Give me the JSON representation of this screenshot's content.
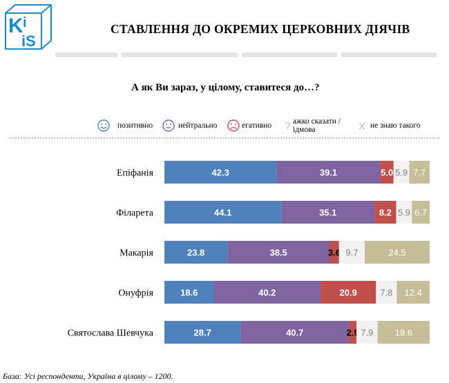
{
  "logo": {
    "text": "KIIS",
    "color": "#1b8bc9"
  },
  "header": {
    "title": "СТАВЛЕННЯ ДО ОКРЕМИХ ЦЕРКОВНИХ ДІЯЧІВ"
  },
  "question": "А як Ви зараз, у цілому, ставитеся до…?",
  "legend": [
    {
      "label": "позитивно",
      "icon": "smile-face-icon",
      "color": "#4f81bd"
    },
    {
      "label": "нейтрально",
      "icon": "neutral-face-icon",
      "color": "#8064a2"
    },
    {
      "label": "егативно",
      "icon": "sad-face-icon",
      "color": "#c0504d"
    },
    {
      "label": "ажко сказати / ідмова",
      "icon": "question-mark-icon",
      "color": "#f2f2f2"
    },
    {
      "label": "не знаю такого",
      "icon": "x-mark-icon",
      "color": "#c6bd99"
    }
  ],
  "chart_data": {
    "type": "bar",
    "orientation": "horizontal",
    "stacked": true,
    "categories": [
      "Епіфанія",
      "Філарета",
      "Макарія",
      "Онуфрія",
      "Святослава Шевчука"
    ],
    "series": [
      {
        "name": "позитивно",
        "color": "#4f81bd",
        "label_color": "#ffffff",
        "bold": true,
        "values": [
          42.3,
          44.1,
          23.8,
          18.6,
          28.7
        ]
      },
      {
        "name": "нейтрально",
        "color": "#8064a2",
        "label_color": "#ffffff",
        "bold": true,
        "values": [
          39.1,
          35.1,
          38.5,
          40.2,
          40.7
        ]
      },
      {
        "name": "егативно",
        "color": "#c0504d",
        "label_color": "#ffffff",
        "bold": true,
        "values": [
          5.0,
          8.2,
          3.6,
          20.9,
          2.9
        ]
      },
      {
        "name": "ажко сказати / ідмова",
        "color": "#f2f2f2",
        "label_color": "#7f7f7f",
        "bold": false,
        "values": [
          5.9,
          5.9,
          9.7,
          7.8,
          7.9
        ]
      },
      {
        "name": "не знаю такого",
        "color": "#c6bd99",
        "label_color": "#ffffff",
        "bold": false,
        "values": [
          7.7,
          6.7,
          24.5,
          12.4,
          19.6
        ]
      }
    ],
    "labels": [
      [
        "42.3",
        "39.1",
        "5.0",
        "5.9",
        "7.7"
      ],
      [
        "44.1",
        "35.1",
        "8.2",
        "5.9",
        "6.7"
      ],
      [
        "23.8",
        "38.5",
        "3.6",
        "9.7",
        "24.5"
      ],
      [
        "18.6",
        "40.2",
        "20.9",
        "7.8",
        "12.4"
      ],
      [
        "28.7",
        "40.7",
        "2.9",
        "7.9",
        "19.6"
      ]
    ],
    "xlim": [
      0,
      100
    ],
    "grid": false
  },
  "footnote": "База: Усі респонденти, Україна в цілому – 1200."
}
